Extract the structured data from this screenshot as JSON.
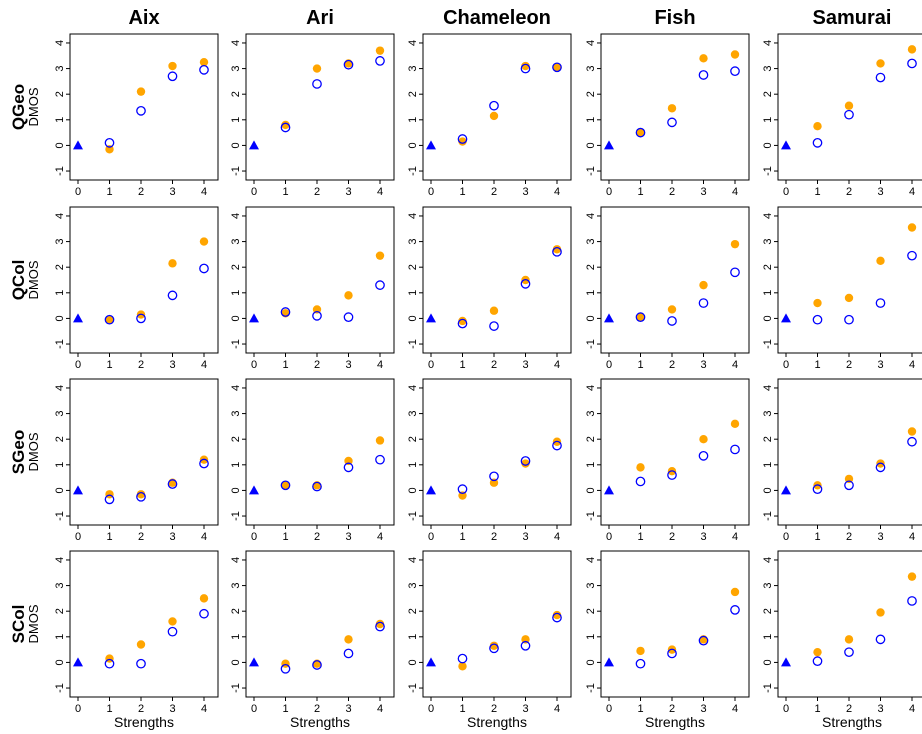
{
  "chart_data": {
    "type": "scatter",
    "columns": [
      "Aix",
      "Ari",
      "Chameleon",
      "Fish",
      "Samurai"
    ],
    "rows": [
      "QGeo",
      "QCol",
      "SGeo",
      "SCol"
    ],
    "ylabel": "DMOS",
    "xlabel": "Strengths",
    "x": [
      0,
      1,
      2,
      3,
      4
    ],
    "xlim": [
      0,
      4
    ],
    "ylim": [
      -1,
      4
    ],
    "xticks": [
      "0",
      "1",
      "2",
      "3",
      "4"
    ],
    "yticks": [
      "-1",
      "0",
      "1",
      "2",
      "3",
      "4"
    ],
    "colors": {
      "series_a": "#FFA500",
      "series_b": "#0000FF",
      "reference": "#0000FF"
    },
    "reference_marker": "filled-triangle",
    "series_a_marker": "filled-circle",
    "series_b_marker": "open-circle",
    "panels": [
      [
        {
          "a": [
            0,
            -0.15,
            2.1,
            3.1,
            3.25
          ],
          "b": [
            0,
            0.1,
            1.35,
            2.7,
            2.95
          ]
        },
        {
          "a": [
            0,
            0.8,
            3.0,
            3.2,
            3.7
          ],
          "b": [
            0,
            0.7,
            2.4,
            3.15,
            3.3
          ]
        },
        {
          "a": [
            0,
            0.15,
            1.15,
            3.1,
            3.05
          ],
          "b": [
            0,
            0.25,
            1.55,
            3.0,
            3.05
          ]
        },
        {
          "a": [
            0,
            0.5,
            1.45,
            3.4,
            3.55
          ],
          "b": [
            0,
            0.5,
            0.9,
            2.75,
            2.9
          ]
        },
        {
          "a": [
            0,
            0.75,
            1.55,
            3.2,
            3.75
          ],
          "b": [
            0,
            0.1,
            1.2,
            2.65,
            3.2
          ]
        }
      ],
      [
        {
          "a": [
            0,
            -0.05,
            0.15,
            2.15,
            3.0
          ],
          "b": [
            0,
            -0.05,
            0.0,
            0.9,
            1.95
          ]
        },
        {
          "a": [
            0,
            0.2,
            0.35,
            0.9,
            2.45
          ],
          "b": [
            0,
            0.25,
            0.1,
            0.05,
            1.3
          ]
        },
        {
          "a": [
            0,
            -0.1,
            0.3,
            1.5,
            2.7
          ],
          "b": [
            0,
            -0.2,
            -0.3,
            1.35,
            2.6
          ]
        },
        {
          "a": [
            0,
            0.05,
            0.35,
            1.3,
            2.9
          ],
          "b": [
            0,
            0.05,
            -0.1,
            0.6,
            1.8
          ]
        },
        {
          "a": [
            0,
            0.6,
            0.8,
            2.25,
            3.55
          ],
          "b": [
            0,
            -0.05,
            -0.05,
            0.6,
            2.45
          ]
        }
      ],
      [
        {
          "a": [
            0,
            -0.15,
            -0.15,
            0.3,
            1.2
          ],
          "b": [
            0,
            -0.35,
            -0.25,
            0.25,
            1.05
          ]
        },
        {
          "a": [
            0,
            0.2,
            0.2,
            1.15,
            1.95
          ],
          "b": [
            0,
            0.2,
            0.15,
            0.9,
            1.2
          ]
        },
        {
          "a": [
            0,
            -0.2,
            0.3,
            1.05,
            1.9
          ],
          "b": [
            0,
            0.05,
            0.55,
            1.15,
            1.75
          ]
        },
        {
          "a": [
            0,
            0.9,
            0.75,
            2.0,
            2.6
          ],
          "b": [
            0,
            0.35,
            0.6,
            1.35,
            1.6
          ]
        },
        {
          "a": [
            0,
            0.2,
            0.45,
            1.05,
            2.3
          ],
          "b": [
            0,
            0.05,
            0.2,
            0.9,
            1.9
          ]
        }
      ],
      [
        {
          "a": [
            0,
            0.15,
            0.7,
            1.6,
            2.5
          ],
          "b": [
            0,
            -0.05,
            -0.05,
            1.2,
            1.9
          ]
        },
        {
          "a": [
            0,
            -0.05,
            -0.05,
            0.9,
            1.5
          ],
          "b": [
            0,
            -0.25,
            -0.1,
            0.35,
            1.4
          ]
        },
        {
          "a": [
            0,
            -0.15,
            0.65,
            0.9,
            1.85
          ],
          "b": [
            0,
            0.15,
            0.55,
            0.65,
            1.75
          ]
        },
        {
          "a": [
            0,
            0.45,
            0.5,
            0.9,
            2.75
          ],
          "b": [
            0,
            -0.05,
            0.35,
            0.85,
            2.05
          ]
        },
        {
          "a": [
            0,
            0.4,
            0.9,
            1.95,
            3.35
          ],
          "b": [
            0,
            0.05,
            0.4,
            0.9,
            2.4
          ]
        }
      ]
    ]
  }
}
